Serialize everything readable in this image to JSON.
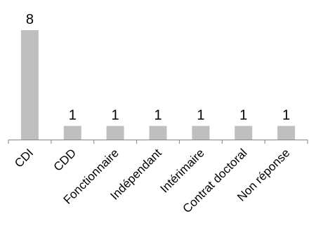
{
  "chart_data": {
    "type": "bar",
    "categories": [
      "CDI",
      "CDD",
      "Fonctionnaire",
      "Indépendant",
      "Intérimaire",
      "Contrat doctoral",
      "Non réponse"
    ],
    "values": [
      8,
      1,
      1,
      1,
      1,
      1,
      1
    ],
    "data_labels": [
      "8",
      "1",
      "1",
      "1",
      "1",
      "1",
      "1"
    ],
    "title": "",
    "xlabel": "",
    "ylabel": "",
    "ylim": [
      0,
      8
    ],
    "grid": false,
    "legend": "none",
    "bar_color": "#bfbfbf",
    "axis_color": "#868686"
  }
}
